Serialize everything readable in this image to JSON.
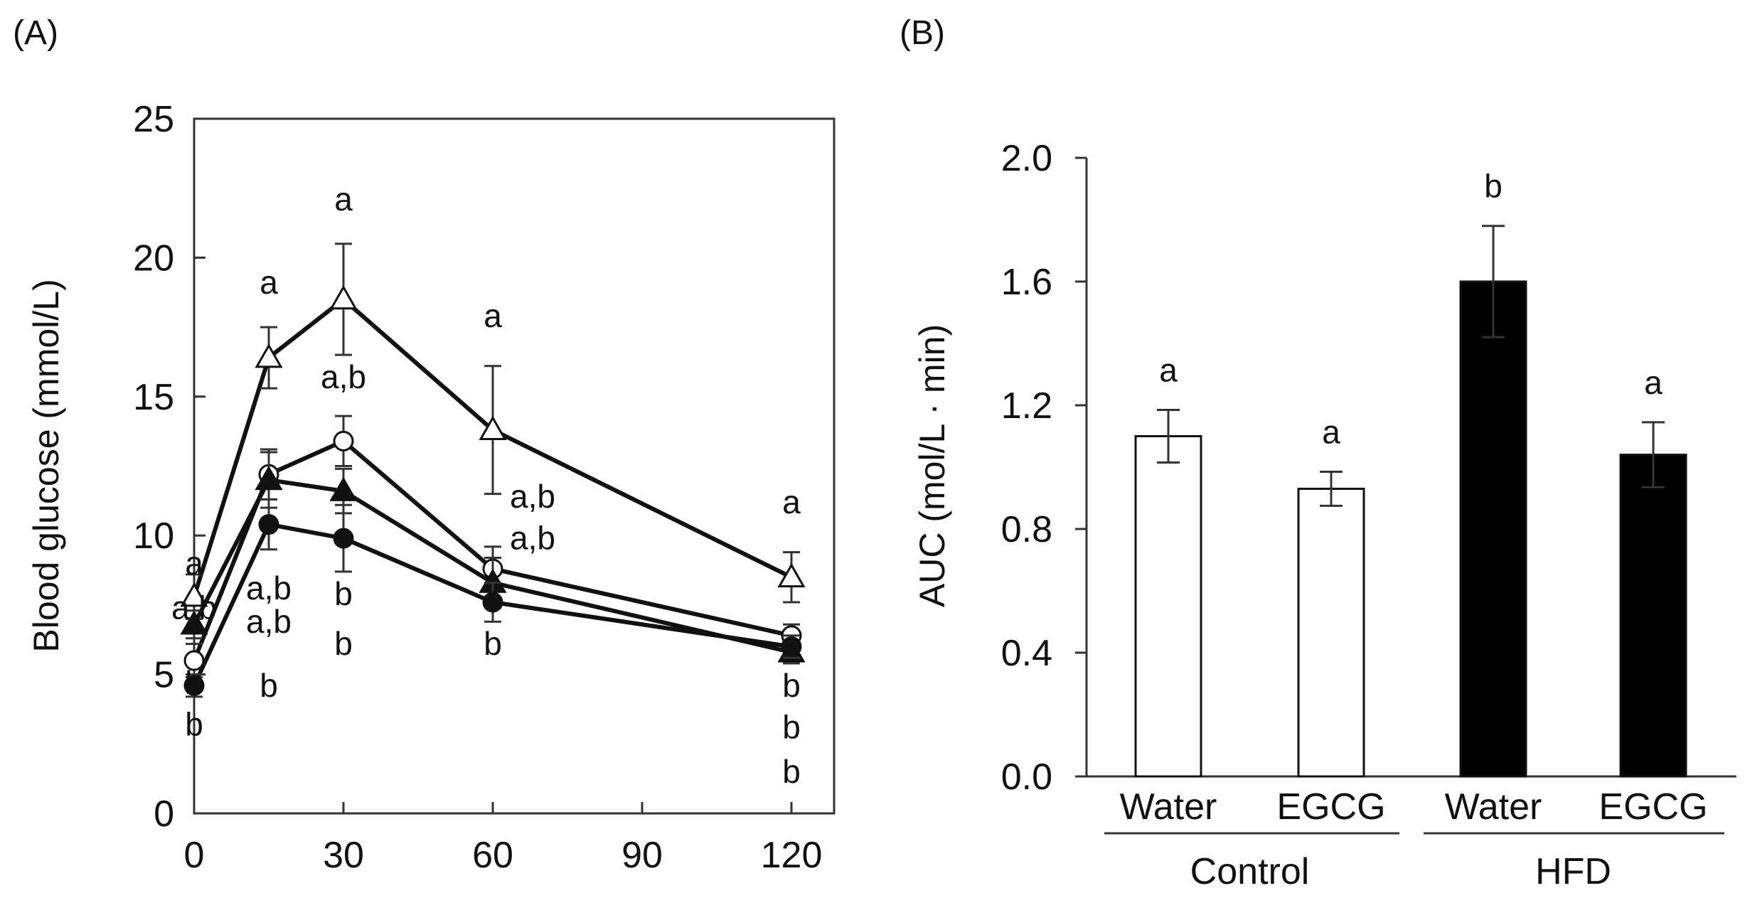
{
  "figure": {
    "panels": [
      {
        "id": "A",
        "label": "(A)"
      },
      {
        "id": "B",
        "label": "(B)"
      }
    ]
  },
  "chart_data": [
    {
      "panel": "(A)",
      "type": "line",
      "xlabel": "",
      "ylabel": "Blood glucose (mmol/L)",
      "xlim": [
        0,
        120
      ],
      "ylim": [
        0,
        25
      ],
      "xticks": [
        0,
        30,
        60,
        90,
        120
      ],
      "yticks": [
        0,
        5,
        10,
        15,
        20,
        25
      ],
      "x": [
        0,
        15,
        30,
        60,
        120
      ],
      "series": [
        {
          "marker": "open-triangle",
          "values": [
            7.8,
            16.4,
            18.5,
            13.8,
            8.5
          ],
          "errors": [
            0.8,
            1.1,
            2.0,
            2.3,
            0.9
          ]
        },
        {
          "marker": "open-circle",
          "values": [
            5.5,
            12.2,
            13.4,
            8.8,
            6.4
          ],
          "errors": [
            0.6,
            0.9,
            0.9,
            0.8,
            0.4
          ]
        },
        {
          "marker": "filled-triangle",
          "values": [
            6.8,
            12.0,
            11.6,
            8.3,
            5.8
          ],
          "errors": [
            0.5,
            1.0,
            0.8,
            0.9,
            0.4
          ]
        },
        {
          "marker": "filled-circle",
          "values": [
            4.6,
            10.4,
            9.9,
            7.6,
            6.0
          ],
          "errors": [
            0.4,
            0.9,
            1.2,
            0.7,
            0.4
          ]
        }
      ],
      "annotations": [
        {
          "text": "a",
          "x": 0,
          "y": 8.6
        },
        {
          "text": "a,b",
          "x": 0,
          "y": 7.0
        },
        {
          "text": "b",
          "x": 0,
          "y": 4.3
        },
        {
          "text": "b",
          "x": 0,
          "y": 2.8
        },
        {
          "text": "a",
          "x": 15,
          "y": 18.7
        },
        {
          "text": "a,b",
          "x": 15,
          "y": 7.7
        },
        {
          "text": "a,b",
          "x": 15,
          "y": 6.5
        },
        {
          "text": "b",
          "x": 15,
          "y": 4.2
        },
        {
          "text": "a",
          "x": 30,
          "y": 21.7
        },
        {
          "text": "a,b",
          "x": 30,
          "y": 15.3
        },
        {
          "text": "b",
          "x": 30,
          "y": 7.5
        },
        {
          "text": "b",
          "x": 30,
          "y": 5.7
        },
        {
          "text": "a",
          "x": 60,
          "y": 17.5
        },
        {
          "text": "a,b",
          "x": 68,
          "y": 11.0
        },
        {
          "text": "a,b",
          "x": 68,
          "y": 9.5
        },
        {
          "text": "b",
          "x": 60,
          "y": 5.7
        },
        {
          "text": "a",
          "x": 120,
          "y": 10.8
        },
        {
          "text": "b",
          "x": 120,
          "y": 4.2
        },
        {
          "text": "b",
          "x": 120,
          "y": 2.7
        },
        {
          "text": "b",
          "x": 120,
          "y": 1.1
        }
      ]
    },
    {
      "panel": "(B)",
      "type": "bar",
      "ylabel": "AUC (mol/L · min)",
      "ylim": [
        0,
        2.0
      ],
      "yticks": [
        "0.0",
        "0.4",
        "0.8",
        "1.2",
        "1.6",
        "2.0"
      ],
      "categories": [
        "Water",
        "EGCG",
        "Water",
        "EGCG"
      ],
      "groups": [
        {
          "label": "Control",
          "members": [
            0,
            1
          ]
        },
        {
          "label": "HFD",
          "members": [
            2,
            3
          ]
        }
      ],
      "values": [
        1.1,
        0.93,
        1.6,
        1.04
      ],
      "errors": [
        0.085,
        0.055,
        0.18,
        0.105
      ],
      "fills": [
        "#ffffff",
        "#ffffff",
        "#000000",
        "#000000"
      ],
      "letters": [
        "a",
        "a",
        "b",
        "a"
      ]
    }
  ]
}
